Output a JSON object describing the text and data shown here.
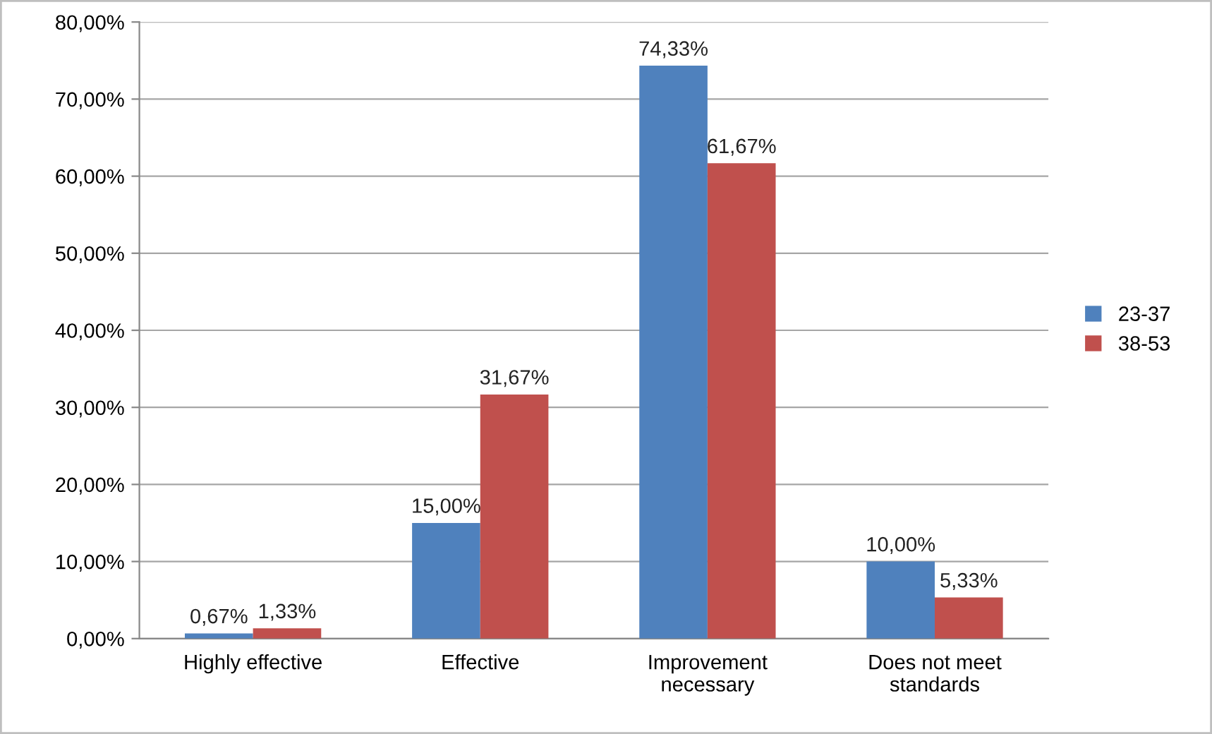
{
  "chart_data": {
    "type": "bar",
    "categories": [
      "Highly effective",
      "Effective",
      "Improvement\nnecessary",
      "Does not meet\nstandards"
    ],
    "series": [
      {
        "name": "23-37",
        "color": "#4f81bd",
        "values": [
          0.67,
          15.0,
          74.33,
          10.0
        ],
        "value_labels": [
          "0,67%",
          "15,00%",
          "74,33%",
          "10,00%"
        ]
      },
      {
        "name": "38-53",
        "color": "#c0504d",
        "values": [
          1.33,
          31.67,
          61.67,
          5.33
        ],
        "value_labels": [
          "1,33%",
          "31,67%",
          "61,67%",
          "5,33%"
        ]
      }
    ],
    "ylim": [
      0,
      80
    ],
    "yticks": [
      {
        "value": 0,
        "label": "0,00%"
      },
      {
        "value": 10,
        "label": "10,00%"
      },
      {
        "value": 20,
        "label": "20,00%"
      },
      {
        "value": 30,
        "label": "30,00%"
      },
      {
        "value": 40,
        "label": "40,00%"
      },
      {
        "value": 50,
        "label": "50,00%"
      },
      {
        "value": 60,
        "label": "60,00%"
      },
      {
        "value": 70,
        "label": "70,00%"
      },
      {
        "value": 80,
        "label": "80,00%"
      }
    ],
    "grid": "y",
    "legend": "right"
  }
}
